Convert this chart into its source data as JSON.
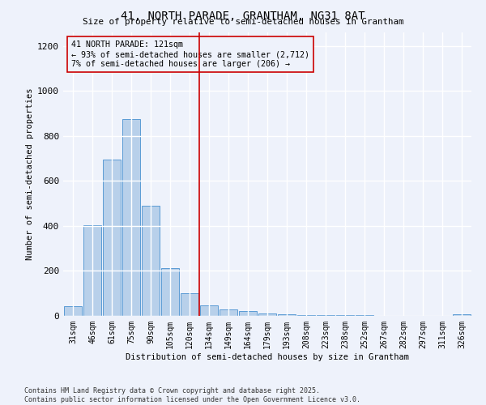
{
  "title_line1": "41, NORTH PARADE, GRANTHAM, NG31 8AT",
  "title_line2": "Size of property relative to semi-detached houses in Grantham",
  "xlabel": "Distribution of semi-detached houses by size in Grantham",
  "ylabel": "Number of semi-detached properties",
  "categories": [
    "31sqm",
    "46sqm",
    "61sqm",
    "75sqm",
    "90sqm",
    "105sqm",
    "120sqm",
    "134sqm",
    "149sqm",
    "164sqm",
    "179sqm",
    "193sqm",
    "208sqm",
    "223sqm",
    "238sqm",
    "252sqm",
    "267sqm",
    "282sqm",
    "297sqm",
    "311sqm",
    "326sqm"
  ],
  "values": [
    45,
    405,
    695,
    875,
    490,
    213,
    100,
    47,
    30,
    22,
    12,
    8,
    5,
    3,
    2,
    2,
    1,
    1,
    0,
    0,
    8
  ],
  "bar_color": "#b8d0ea",
  "bar_edge_color": "#5b9bd5",
  "vline_color": "#cc0000",
  "annotation_title": "41 NORTH PARADE: 121sqm",
  "annotation_line1": "← 93% of semi-detached houses are smaller (2,712)",
  "annotation_line2": "7% of semi-detached houses are larger (206) →",
  "annotation_box_color": "#cc0000",
  "ylim": [
    0,
    1260
  ],
  "yticks": [
    0,
    200,
    400,
    600,
    800,
    1000,
    1200
  ],
  "footer_line1": "Contains HM Land Registry data © Crown copyright and database right 2025.",
  "footer_line2": "Contains public sector information licensed under the Open Government Licence v3.0.",
  "bg_color": "#eef2fb",
  "grid_color": "#ffffff"
}
